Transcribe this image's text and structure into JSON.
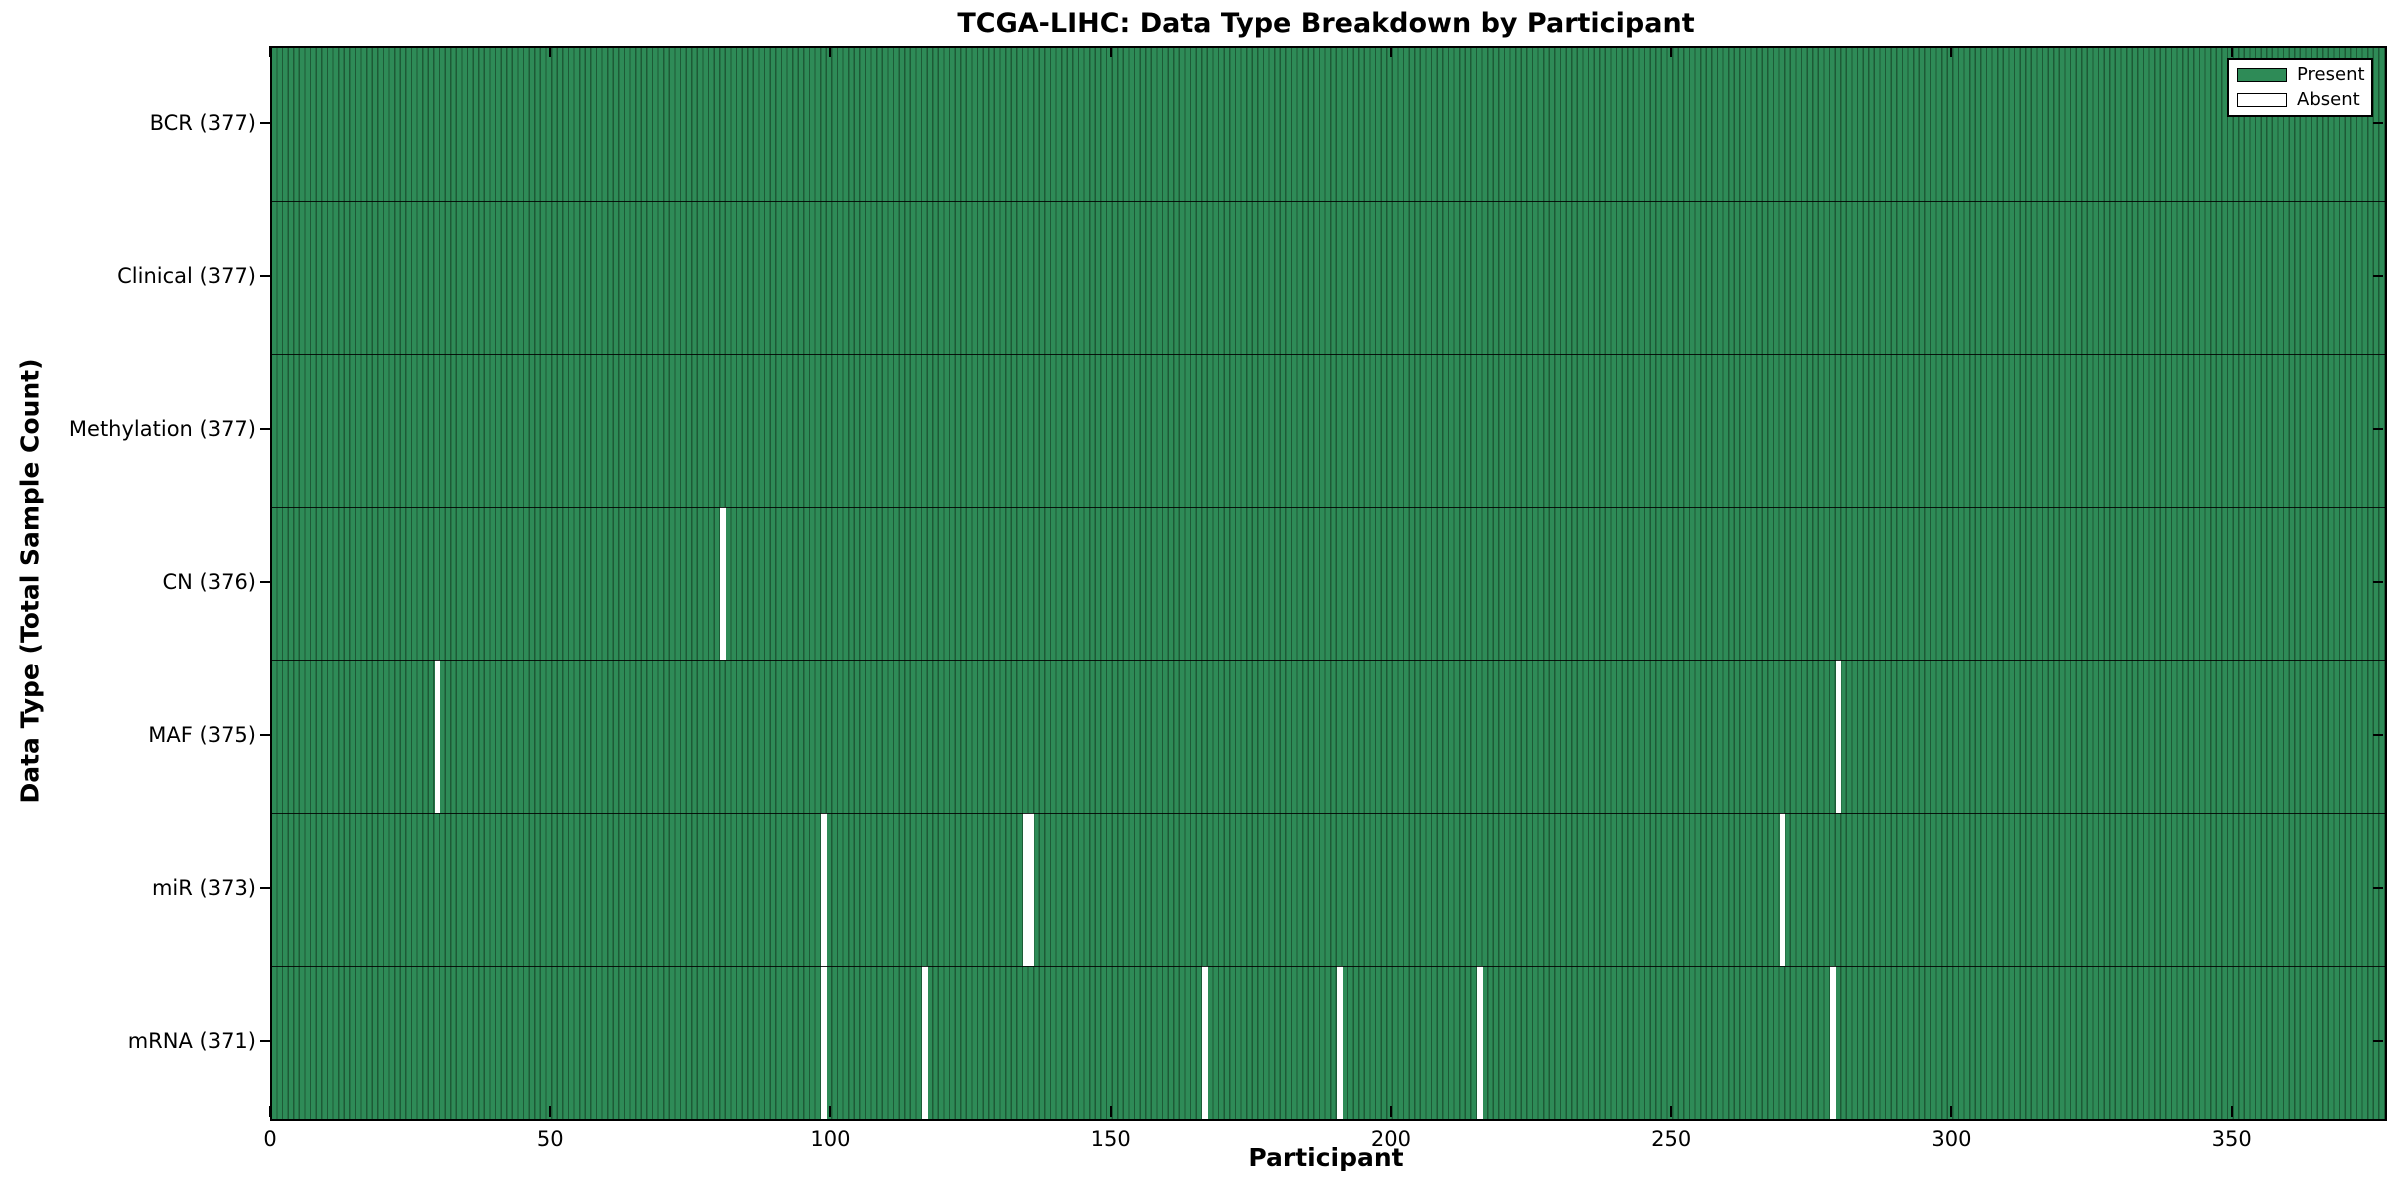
{
  "chart_data": {
    "type": "heatmap",
    "title": "TCGA-LIHC: Data Type Breakdown by Participant",
    "xlabel": "Participant",
    "ylabel": "Data Type (Total Sample Count)",
    "n_participants": 377,
    "x_ticks": [
      0,
      50,
      100,
      150,
      200,
      250,
      300,
      350
    ],
    "xlim": [
      0,
      377
    ],
    "grid": false,
    "legend_position": "upper right",
    "legend": [
      {
        "label": "Present",
        "color": "#2e8b57"
      },
      {
        "label": "Absent",
        "color": "#ffffff"
      }
    ],
    "colors": {
      "present": "#2e8b57",
      "absent": "#ffffff",
      "cell_edge": "#1d5a36",
      "axis": "#000000",
      "background": "#ffffff"
    },
    "rows": [
      {
        "label": "BCR (377)",
        "data_type": "BCR",
        "present_count": 377,
        "absent_participants": []
      },
      {
        "label": "Clinical (377)",
        "data_type": "Clinical",
        "present_count": 377,
        "absent_participants": []
      },
      {
        "label": "Methylation (377)",
        "data_type": "Methylation",
        "present_count": 377,
        "absent_participants": []
      },
      {
        "label": "CN (376)",
        "data_type": "CN",
        "present_count": 376,
        "absent_participants": [
          80
        ]
      },
      {
        "label": "MAF (375)",
        "data_type": "MAF",
        "present_count": 375,
        "absent_participants": [
          29,
          279
        ]
      },
      {
        "label": "miR (373)",
        "data_type": "miR",
        "present_count": 373,
        "absent_participants": [
          98,
          134,
          135,
          269
        ]
      },
      {
        "label": "mRNA (371)",
        "data_type": "mRNA",
        "present_count": 371,
        "absent_participants": [
          98,
          116,
          166,
          190,
          215,
          278
        ]
      }
    ]
  }
}
